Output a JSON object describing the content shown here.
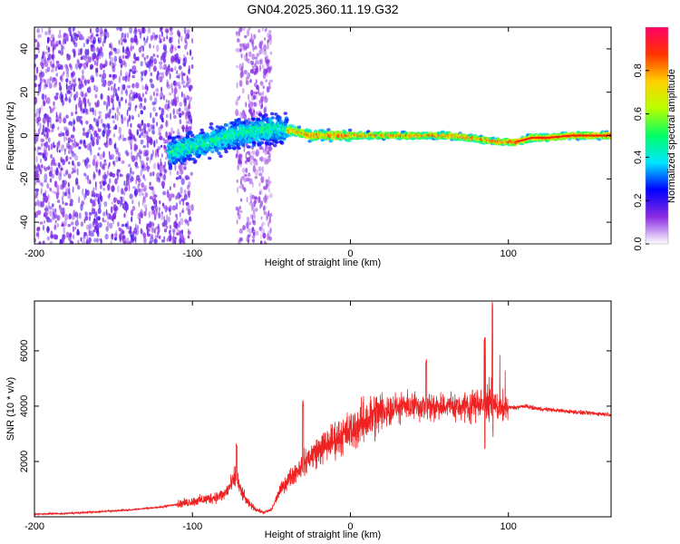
{
  "title": "GN04.2025.360.11.19.G32",
  "chart_data": [
    {
      "type": "heatmap",
      "xlabel": "Height of straight line (km)",
      "ylabel": "Frequency (Hz)",
      "xlim": [
        -200,
        165
      ],
      "ylim": [
        -50,
        50
      ],
      "x_ticks": [
        -200,
        -100,
        0,
        100
      ],
      "y_ticks": [
        -40,
        -20,
        0,
        20,
        40
      ],
      "colorbar": {
        "label": "Normalized spectral amplitude",
        "range": [
          0,
          1
        ],
        "ticks": [
          0.0,
          0.2,
          0.4,
          0.6,
          0.8
        ],
        "stops": [
          "#ffffff",
          "#8a2be2",
          "#0000ff",
          "#00e5ff",
          "#00ff66",
          "#b8ff00",
          "#ffd000",
          "#ff3300",
          "#ff0066"
        ]
      },
      "ridge": {
        "description": "dominant frequency track",
        "x": [
          -115,
          -90,
          -70,
          -55,
          -45,
          -35,
          -25,
          -10,
          0,
          20,
          40,
          60,
          75,
          85,
          95,
          105,
          115,
          125,
          140,
          165
        ],
        "y": [
          -8,
          -3,
          1,
          3,
          3,
          2,
          0,
          0,
          0,
          0,
          0,
          0,
          -1,
          -2,
          -3,
          -3,
          -1,
          -1,
          0,
          0
        ]
      },
      "noise_regions": [
        {
          "x_from": -200,
          "x_to": -100,
          "note": "broadband noise"
        },
        {
          "x_from": -72,
          "x_to": -50,
          "note": "broadband noise"
        }
      ]
    },
    {
      "type": "line",
      "xlabel": "Height of straight line (km)",
      "ylabel": "SNR (10 * v/v)",
      "xlim": [
        -200,
        165
      ],
      "ylim": [
        0,
        7800
      ],
      "x_ticks": [
        -200,
        -100,
        0,
        100
      ],
      "y_ticks": [
        2000,
        4000,
        6000
      ],
      "series": [
        {
          "name": "SNR",
          "color": "#ee2222",
          "x": [
            -200,
            -180,
            -160,
            -140,
            -120,
            -110,
            -100,
            -90,
            -80,
            -75,
            -72,
            -70,
            -65,
            -60,
            -55,
            -50,
            -45,
            -40,
            -35,
            -30,
            -25,
            -20,
            -15,
            -10,
            -5,
            0,
            5,
            10,
            15,
            20,
            25,
            30,
            40,
            50,
            60,
            70,
            80,
            85,
            90,
            95,
            100,
            105,
            110,
            120,
            130,
            140,
            150,
            165
          ],
          "y": [
            100,
            120,
            180,
            250,
            350,
            450,
            550,
            650,
            800,
            1200,
            1500,
            1000,
            500,
            280,
            150,
            250,
            900,
            1300,
            1600,
            1900,
            2200,
            2400,
            2600,
            2800,
            2950,
            3100,
            3300,
            3500,
            3650,
            3800,
            3900,
            3950,
            4000,
            4000,
            4000,
            4000,
            4050,
            4050,
            4050,
            3900,
            3950,
            3950,
            4000,
            3900,
            3850,
            3800,
            3750,
            3700
          ]
        }
      ],
      "peaks": [
        {
          "x": -72,
          "y": 2700
        },
        {
          "x": -30,
          "y": 4200
        },
        {
          "x": 48,
          "y": 5700
        },
        {
          "x": 85,
          "y": 6500
        },
        {
          "x": 90,
          "y": 7800
        }
      ]
    }
  ]
}
